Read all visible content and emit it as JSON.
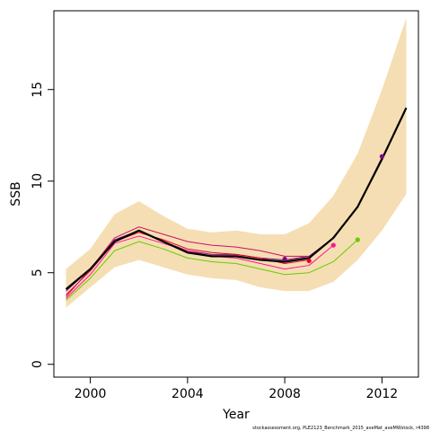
{
  "chart_data": {
    "type": "line",
    "xlabel": "Year",
    "ylabel": "SSB",
    "xlim": [
      1998.5,
      2013.5
    ],
    "ylim": [
      -0.7,
      19.3
    ],
    "x_ticks": [
      2000,
      2004,
      2008,
      2012
    ],
    "y_ticks": [
      0,
      5,
      10,
      15
    ],
    "grid": false,
    "band": {
      "color": "#f5deb3",
      "x": [
        1999,
        2000,
        2001,
        2002,
        2003,
        2004,
        2005,
        2006,
        2007,
        2008,
        2009,
        2010,
        2011,
        2012,
        2013
      ],
      "upper": [
        5.2,
        6.3,
        8.2,
        8.9,
        8.1,
        7.4,
        7.2,
        7.3,
        7.1,
        7.1,
        7.7,
        9.2,
        11.5,
        15.0,
        18.9
      ],
      "lower": [
        3.1,
        4.2,
        5.3,
        5.7,
        5.3,
        4.9,
        4.7,
        4.6,
        4.2,
        4.0,
        4.0,
        4.5,
        5.7,
        7.3,
        9.3
      ]
    },
    "series": [
      {
        "color": "#000000",
        "x": [
          1999,
          2000,
          2001,
          2002,
          2003,
          2004,
          2005,
          2006,
          2007,
          2008,
          2009,
          2010,
          2011,
          2012,
          2013
        ],
        "values": [
          4.1,
          5.2,
          6.7,
          7.3,
          6.7,
          6.1,
          5.9,
          5.9,
          5.7,
          5.6,
          5.8,
          6.9,
          8.6,
          11.2,
          14.0
        ]
      },
      {
        "color": "#7a0a80",
        "x": [
          1999,
          2000,
          2001,
          2002,
          2003,
          2004,
          2005,
          2006,
          2007,
          2008,
          2009,
          2010,
          2011,
          2012
        ],
        "values": [
          4.0,
          5.2,
          6.8,
          7.3,
          6.7,
          6.2,
          6.0,
          6.0,
          5.8,
          5.7,
          5.9,
          6.9,
          8.6,
          11.3
        ]
      },
      {
        "color": "#e8002a",
        "x": [
          1999,
          2000,
          2001,
          2002,
          2003,
          2004,
          2005,
          2006,
          2007,
          2008,
          2009
        ],
        "values": [
          3.8,
          5.1,
          6.7,
          7.2,
          6.8,
          6.3,
          6.1,
          6.0,
          5.8,
          5.5,
          5.7
        ]
      },
      {
        "color": "#d01060",
        "x": [
          1999,
          2000,
          2001,
          2002,
          2003,
          2004,
          2005,
          2006,
          2007,
          2008,
          2009
        ],
        "values": [
          3.7,
          5.2,
          6.9,
          7.5,
          7.1,
          6.7,
          6.5,
          6.4,
          6.2,
          5.9,
          5.9
        ]
      },
      {
        "color": "#ff1493",
        "x": [
          1999,
          2000,
          2001,
          2002,
          2003,
          2004,
          2005,
          2006,
          2007,
          2008,
          2009,
          2010
        ],
        "values": [
          3.6,
          4.9,
          6.6,
          7.0,
          6.6,
          6.2,
          5.9,
          5.8,
          5.5,
          5.2,
          5.4,
          6.5
        ]
      },
      {
        "color": "#66cc00",
        "x": [
          1999,
          2000,
          2001,
          2002,
          2003,
          2004,
          2005,
          2006,
          2007,
          2008,
          2009,
          2010,
          2011
        ],
        "values": [
          3.5,
          4.7,
          6.2,
          6.7,
          6.3,
          5.8,
          5.6,
          5.5,
          5.2,
          4.9,
          5.0,
          5.6,
          6.8
        ]
      }
    ],
    "endpoints": [
      {
        "x": 2008,
        "y": 5.75,
        "color": "#7a0a80"
      },
      {
        "x": 2009,
        "y": 5.65,
        "color": "#e8002a"
      },
      {
        "x": 2010,
        "y": 6.5,
        "color": "#ff1493"
      },
      {
        "x": 2011,
        "y": 6.8,
        "color": "#66cc00"
      },
      {
        "x": 2012,
        "y": 11.35,
        "color": "#7a0a80"
      }
    ],
    "footnote": "stockassessment.org, PLE2123_Benchmark_2015_aveMat_aveMWstock, r4398"
  }
}
